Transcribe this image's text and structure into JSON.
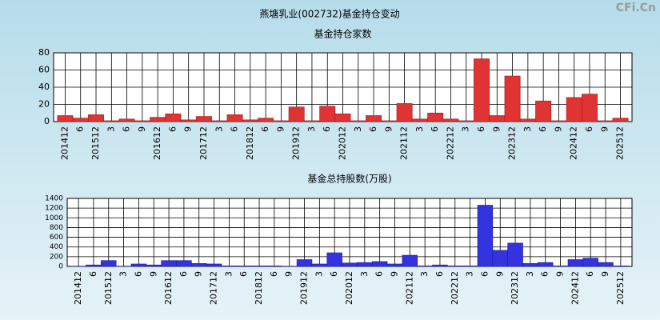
{
  "title": "燕塘乳业(002732)基金持仓变动",
  "watermark": "CFi.Cn",
  "chart_data": [
    {
      "type": "bar",
      "title": "基金持仓家数",
      "color": "#e03333",
      "categories": [
        "201412",
        "6",
        "201512",
        "3",
        "6",
        "9",
        "201612",
        "6",
        "9",
        "201712",
        "3",
        "6",
        "201812",
        "6",
        "9",
        "201912",
        "3",
        "6",
        "202012",
        "3",
        "6",
        "9",
        "202112",
        "3",
        "6",
        "202212",
        "3",
        "6",
        "9",
        "202312",
        "3",
        "6",
        "9",
        "202412",
        "6",
        "9",
        "202512"
      ],
      "values": [
        7,
        4,
        8,
        1,
        3,
        1,
        5,
        9,
        2,
        6,
        1,
        8,
        2,
        4,
        1,
        17,
        1,
        18,
        9,
        1,
        7,
        1,
        21,
        3,
        10,
        3,
        1,
        73,
        7,
        53,
        3,
        24,
        1,
        28,
        32,
        1,
        4
      ],
      "ylim": [
        0,
        80
      ],
      "yticks": [
        0,
        20,
        40,
        60,
        80
      ],
      "grid": true
    },
    {
      "type": "bar",
      "title": "基金总持股数(万股)",
      "color": "#3333e0",
      "categories": [
        "201412",
        "6",
        "201512",
        "3",
        "6",
        "9",
        "201612",
        "6",
        "9",
        "201712",
        "3",
        "6",
        "201812",
        "6",
        "9",
        "201912",
        "3",
        "6",
        "202012",
        "3",
        "6",
        "9",
        "202112",
        "3",
        "6",
        "202212",
        "3",
        "6",
        "9",
        "202312",
        "3",
        "6",
        "9",
        "202412",
        "6",
        "9",
        "202512"
      ],
      "values": [
        5,
        30,
        120,
        5,
        50,
        30,
        120,
        120,
        60,
        50,
        10,
        10,
        10,
        10,
        5,
        140,
        50,
        280,
        70,
        80,
        100,
        50,
        230,
        10,
        30,
        10,
        10,
        1260,
        330,
        480,
        60,
        80,
        10,
        140,
        170,
        80,
        10
      ],
      "ylim": [
        0,
        1400
      ],
      "yticks": [
        0,
        200,
        400,
        600,
        800,
        1000,
        1200,
        1400
      ],
      "grid": true
    }
  ]
}
